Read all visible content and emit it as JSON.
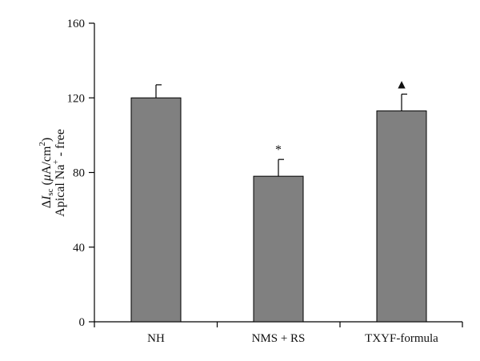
{
  "chart_data": {
    "type": "bar",
    "categories": [
      "NH",
      "NMS + RS",
      "TXYF-formula"
    ],
    "values": [
      120,
      78,
      113
    ],
    "errors": [
      7,
      9,
      9
    ],
    "annotations": [
      "",
      "*",
      "▲"
    ],
    "ylim": [
      0,
      160
    ],
    "yticks": [
      0,
      40,
      80,
      120,
      160
    ],
    "ytick_labels": [
      "0",
      "40",
      "80",
      "120",
      "160"
    ],
    "ylabel": {
      "line1": {
        "delta": "Δ",
        "I": "I",
        "sub": "sc",
        "paren_open": " (",
        "mu": "μ",
        "unit": "A/cm",
        "sup": "2",
        "paren_close": ")"
      },
      "line2": {
        "pre": "Apical Na",
        "sup": "+",
        "post": " - free"
      }
    },
    "xlabel": "",
    "title": "",
    "grid": false,
    "legend": "none",
    "colors": {
      "bar": "#808080",
      "bar_edge": "#000000",
      "axis": "#000000"
    }
  }
}
